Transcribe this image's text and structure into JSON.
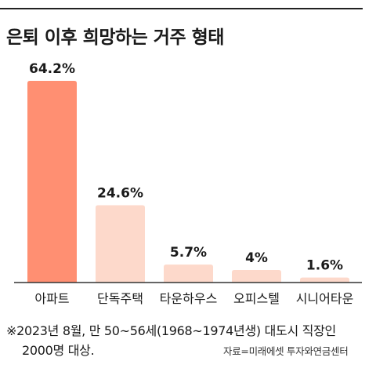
{
  "title": "은퇴 이후 희망하는 거주 형태",
  "note_line1": "※2023년 8월, 만 50~56세(1968~1974년생) 대도시 직장인",
  "note_line2": "2000명 대상.",
  "source": "자료=미래에셋 투자와연금센터",
  "colors": {
    "highlight": "#FF8F72",
    "bar": "#FDD9CB",
    "axis": "#333333",
    "rule": "#222222"
  },
  "chart_data": {
    "type": "bar",
    "title": "은퇴 이후 희망하는 거주 형태",
    "categories": [
      "아파트",
      "단독주택",
      "타운하우스",
      "오피스텔",
      "시니어타운"
    ],
    "values": [
      64.2,
      24.6,
      5.7,
      4,
      1.6
    ],
    "value_labels": [
      "64.2%",
      "24.6%",
      "5.7%",
      "4%",
      "1.6%"
    ],
    "unit": "%",
    "highlight_index": 0,
    "ylim": [
      0,
      64.2
    ],
    "grid": false,
    "legend": "none"
  }
}
